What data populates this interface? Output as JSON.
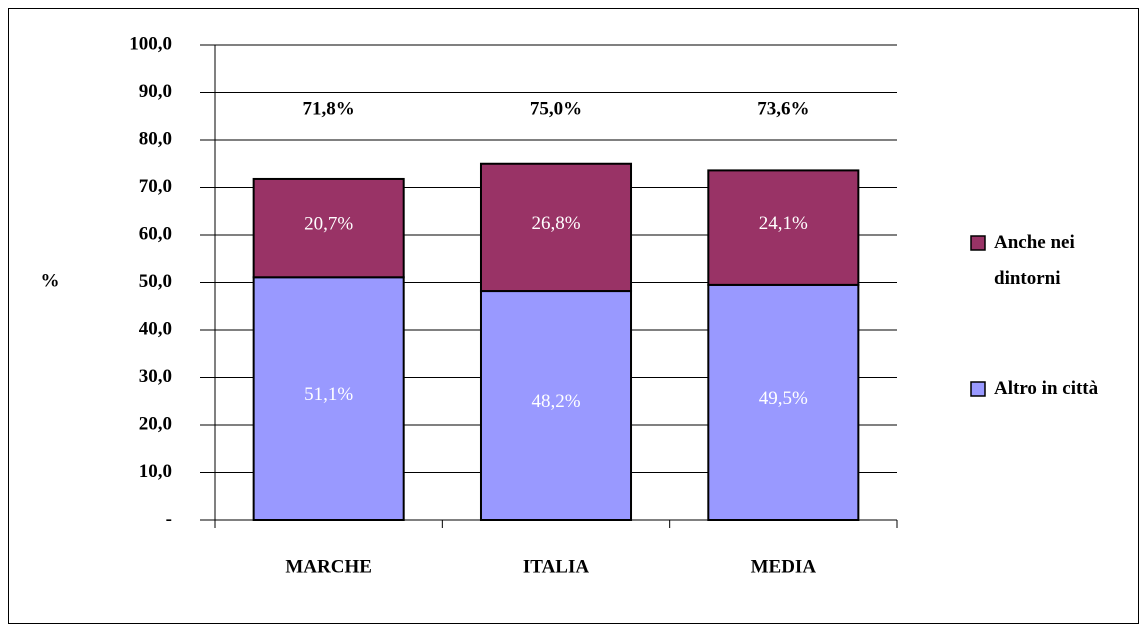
{
  "chart_data": {
    "type": "stacked_bar",
    "categories": [
      "MARCHE",
      "ITALIA",
      "MEDIA"
    ],
    "series": [
      {
        "name": "Altro in città",
        "color": "#9999ff",
        "values": [
          51.1,
          48.2,
          49.5
        ],
        "value_labels": [
          "51,1%",
          "48,2%",
          "49,5%"
        ]
      },
      {
        "name": "Anche nei dintorni",
        "color": "#993366",
        "values": [
          20.7,
          26.8,
          24.1
        ],
        "value_labels": [
          "20,7%",
          "26,8%",
          "24,1%"
        ]
      }
    ],
    "totals": [
      71.8,
      75.0,
      73.6
    ],
    "total_labels": [
      "71,8%",
      "75,0%",
      "73,6%"
    ],
    "ylabel": "%",
    "ylim": [
      0,
      100
    ],
    "yticks": [
      {
        "value": 0,
        "label": "-"
      },
      {
        "value": 10,
        "label": "10,0"
      },
      {
        "value": 20,
        "label": "20,0"
      },
      {
        "value": 30,
        "label": "30,0"
      },
      {
        "value": 40,
        "label": "40,0"
      },
      {
        "value": 50,
        "label": "50,0"
      },
      {
        "value": 60,
        "label": "60,0"
      },
      {
        "value": 70,
        "label": "70,0"
      },
      {
        "value": 80,
        "label": "80,0"
      },
      {
        "value": 90,
        "label": "90,0"
      },
      {
        "value": 100,
        "label": "100,0"
      }
    ],
    "grid": true,
    "legend": "right"
  }
}
